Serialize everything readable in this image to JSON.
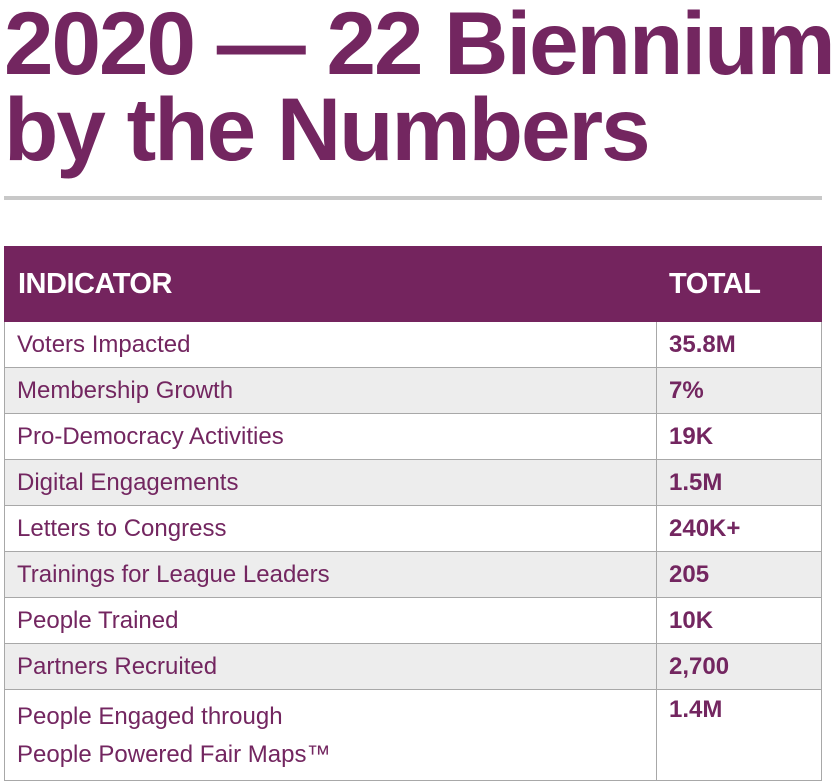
{
  "title": {
    "line1": "2020 — 22 Biennium",
    "line2": "by the Numbers"
  },
  "table": {
    "headers": {
      "indicator": "INDICATOR",
      "total": "TOTAL"
    },
    "rows": [
      {
        "indicator": "Voters Impacted",
        "total": "35.8M"
      },
      {
        "indicator": "Membership Growth",
        "total": "7%"
      },
      {
        "indicator": "Pro-Democracy Activities",
        "total": "19K"
      },
      {
        "indicator": "Digital Engagements",
        "total": "1.5M"
      },
      {
        "indicator": "Letters to Congress",
        "total": "240K+"
      },
      {
        "indicator": "Trainings for League Leaders",
        "total": "205"
      },
      {
        "indicator": "People Trained",
        "total": "10K"
      },
      {
        "indicator": "Partners Recruited",
        "total": "2,700"
      },
      {
        "indicator_line1": "People Engaged through",
        "indicator_line2": "People Powered Fair Maps™",
        "total": "1.4M"
      }
    ]
  },
  "colors": {
    "brand_purple": "#74245e",
    "text_purple": "#732660",
    "row_alt": "#ededed",
    "rule_gray": "#c8c8c8"
  }
}
